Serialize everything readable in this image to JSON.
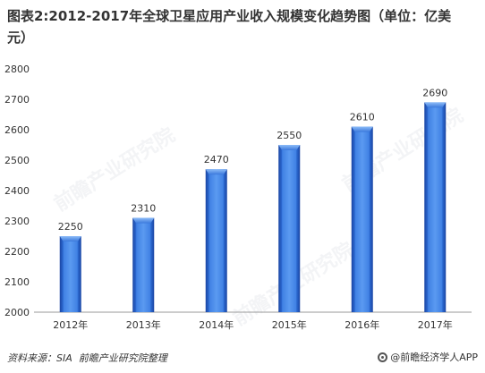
{
  "chart_data": {
    "type": "bar",
    "title": "图表2:2012-2017年全球卫星应用产业收入规模变化趋势图（单位：亿美元）",
    "xlabel": "",
    "ylabel": "",
    "categories": [
      "2012年",
      "2013年",
      "2014年",
      "2015年",
      "2016年",
      "2017年"
    ],
    "values": [
      2250,
      2310,
      2470,
      2550,
      2610,
      2690
    ],
    "ylim": [
      2000,
      2800
    ],
    "yticks": [
      "2000",
      "2100",
      "2200",
      "2300",
      "2400",
      "2500",
      "2600",
      "2700",
      "2800"
    ],
    "data_labels": [
      "2250",
      "2310",
      "2470",
      "2550",
      "2610",
      "2690"
    ],
    "grid": false,
    "legend": "none"
  },
  "colors": {
    "bar": "#2f6fd8",
    "bar_dark": "#1a45a3",
    "bar_light": "#6aa6f5",
    "axis": "#9a9a9a",
    "title": "#333333"
  },
  "watermark": {
    "text": "前瞻产业研究院"
  },
  "footer": {
    "source": "资料来源：SIA  前瞻产业研究院整理",
    "credit": "@前瞻经济学人APP",
    "credit_icon": "qianzhan-logo-icon"
  }
}
